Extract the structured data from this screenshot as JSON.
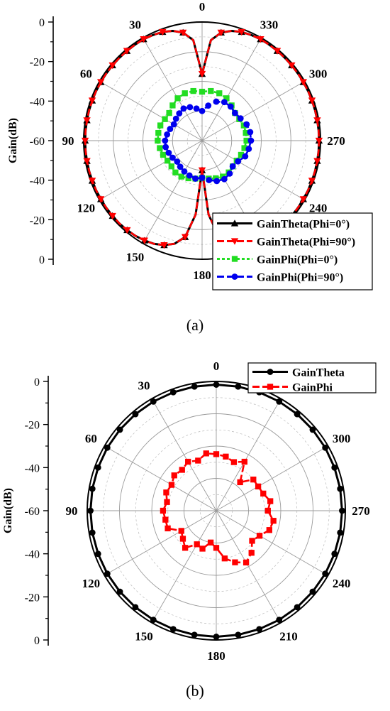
{
  "panel_labels": [
    "(a)",
    "(b)"
  ],
  "chart_data": [
    {
      "type": "polar-line",
      "panel": "(a)",
      "radial_label": "Gain(dB)",
      "rlim": [
        -80,
        0
      ],
      "radial_ticks": [
        0,
        -20,
        -40,
        -60,
        -40,
        -20,
        0
      ],
      "angle_labels": [
        "0",
        "30",
        "60",
        "90",
        "120",
        "150",
        "180",
        "210",
        "240",
        "270",
        "300",
        "330"
      ],
      "angle_direction": "counterclockwise",
      "grid": true,
      "legend_position": "bottom-right",
      "series": [
        {
          "name": "GainTheta(Phi=0°)",
          "color": "#000000",
          "marker": "triangle-up",
          "line": "solid",
          "theta": [
            0,
            5,
            10,
            15,
            20,
            25,
            30,
            35,
            40,
            45,
            50,
            55,
            60,
            65,
            70,
            75,
            80,
            85,
            90,
            95,
            100,
            105,
            110,
            115,
            120,
            125,
            130,
            135,
            140,
            145,
            150,
            155,
            160,
            165,
            170,
            175,
            180,
            185,
            190,
            195,
            200,
            205,
            210,
            215,
            220,
            225,
            230,
            235,
            240,
            245,
            250,
            255,
            260,
            265,
            270,
            275,
            280,
            285,
            290,
            295,
            300,
            305,
            310,
            315,
            320,
            325,
            330,
            335,
            340,
            345,
            350,
            355
          ],
          "values": [
            -35,
            -12,
            -6,
            -3.4,
            -2,
            -1.4,
            -1,
            -1,
            -1,
            -1,
            -1,
            -1,
            -1,
            -1,
            -1,
            -1,
            -1,
            -1,
            -1,
            -1,
            -1,
            -1,
            -1,
            -1,
            -1,
            -1,
            -1,
            -1,
            -1.2,
            -1.6,
            -2.2,
            -3.2,
            -5,
            -8,
            -14,
            -30,
            -60,
            -30,
            -14,
            -8,
            -5,
            -3.2,
            -2.2,
            -1.6,
            -1.2,
            -1,
            -1,
            -1,
            -1,
            -1,
            -1,
            -1,
            -1,
            -1,
            -1,
            -1,
            -1,
            -1,
            -1,
            -1,
            -1,
            -1,
            -1,
            -1,
            -1,
            -1,
            -1,
            -1.4,
            -2,
            -3.4,
            -6,
            -12
          ]
        },
        {
          "name": "GainTheta(Phi=90°)",
          "color": "#ff0000",
          "marker": "triangle-down",
          "line": "dash",
          "theta": [
            0,
            5,
            10,
            15,
            20,
            25,
            30,
            35,
            40,
            45,
            50,
            55,
            60,
            65,
            70,
            75,
            80,
            85,
            90,
            95,
            100,
            105,
            110,
            115,
            120,
            125,
            130,
            135,
            140,
            145,
            150,
            155,
            160,
            165,
            170,
            175,
            180,
            185,
            190,
            195,
            200,
            205,
            210,
            215,
            220,
            225,
            230,
            235,
            240,
            245,
            250,
            255,
            260,
            265,
            270,
            275,
            280,
            285,
            290,
            295,
            300,
            305,
            310,
            315,
            320,
            325,
            330,
            335,
            340,
            345,
            350,
            355
          ],
          "values": [
            -35,
            -12,
            -6,
            -3.4,
            -2,
            -1.4,
            -1,
            -1,
            -1,
            -1,
            -1,
            -1,
            -1,
            -1,
            -1,
            -1,
            -1,
            -1,
            -1,
            -1,
            -1,
            -1,
            -1,
            -1,
            -1,
            -1,
            -1,
            -1,
            -1.2,
            -1.6,
            -2.2,
            -3.2,
            -5,
            -8,
            -14,
            -30,
            -60,
            -30,
            -14,
            -8,
            -5,
            -3.2,
            -2.2,
            -1.6,
            -1.2,
            -1,
            -1,
            -1,
            -1,
            -1,
            -1,
            -1,
            -1,
            -1,
            -1,
            -1,
            -1,
            -1,
            -1,
            -1,
            -1,
            -1,
            -1,
            -1,
            -1,
            -1,
            -1,
            -1.4,
            -2,
            -3.4,
            -6,
            -12
          ]
        },
        {
          "name": "GainPhi(Phi=0°)",
          "color": "#22dd22",
          "marker": "square",
          "line": "dot",
          "theta": [
            0,
            10,
            20,
            30,
            40,
            50,
            60,
            70,
            80,
            90,
            100,
            110,
            120,
            130,
            140,
            150,
            160,
            170,
            180,
            190,
            200,
            210,
            220,
            230,
            240,
            250,
            260,
            270,
            280,
            290,
            300,
            310,
            320,
            330,
            340,
            350
          ],
          "values": [
            -47,
            -46,
            -46,
            -47,
            -49,
            -51,
            -51,
            -50,
            -50,
            -50,
            -51,
            -52,
            -53,
            -53,
            -52,
            -52,
            -53,
            -54,
            -55,
            -54,
            -53,
            -52,
            -52,
            -53,
            -53,
            -52,
            -51,
            -50,
            -50,
            -50,
            -51,
            -51,
            -49,
            -47,
            -46,
            -46
          ]
        },
        {
          "name": "GainPhi(Phi=90°)",
          "color": "#0000ee",
          "marker": "circle",
          "line": "dash",
          "theta": [
            0,
            10,
            20,
            30,
            40,
            50,
            60,
            70,
            80,
            90,
            100,
            110,
            120,
            130,
            140,
            150,
            160,
            170,
            180,
            190,
            200,
            210,
            220,
            230,
            240,
            250,
            260,
            270,
            280,
            290,
            300,
            310,
            320,
            330,
            340,
            350
          ],
          "values": [
            -60,
            -58,
            -56,
            -55,
            -56,
            -57,
            -58,
            -57,
            -56,
            -55,
            -55,
            -56,
            -57,
            -58,
            -57,
            -56,
            -55,
            -54,
            -55,
            -53,
            -51,
            -50,
            -51,
            -53,
            -52,
            -49,
            -48,
            -47,
            -47,
            -48,
            -50,
            -51,
            -50,
            -50,
            -52,
            -56
          ]
        }
      ]
    },
    {
      "type": "polar-line",
      "panel": "(b)",
      "radial_label": "Gain(dB)",
      "rlim": [
        -80,
        0
      ],
      "radial_ticks": [
        0,
        -20,
        -40,
        -60,
        -40,
        -20,
        0
      ],
      "angle_labels": [
        "0",
        "30",
        "60",
        "90",
        "120",
        "150",
        "180",
        "210",
        "240",
        "270",
        "300",
        "330"
      ],
      "angle_direction": "counterclockwise",
      "grid": true,
      "legend_position": "top-right",
      "series": [
        {
          "name": "GainTheta",
          "color": "#000000",
          "marker": "circle",
          "line": "solid",
          "theta": [
            0,
            10,
            20,
            30,
            40,
            50,
            60,
            70,
            80,
            90,
            100,
            110,
            120,
            130,
            140,
            150,
            160,
            170,
            180,
            190,
            200,
            210,
            220,
            230,
            240,
            250,
            260,
            270,
            280,
            290,
            300,
            310,
            320,
            330,
            340,
            350
          ],
          "values": [
            -2,
            -2,
            -2,
            -2,
            -2,
            -2,
            -2,
            -2,
            -2,
            -2,
            -2,
            -2,
            -2,
            -2,
            -2,
            -2,
            -2,
            -2,
            -2,
            -2,
            -2,
            -2,
            -2,
            -2,
            -2,
            -2,
            -2,
            -2,
            -2,
            -2,
            -2,
            -2,
            -2,
            -2,
            -2,
            -2
          ]
        },
        {
          "name": "GainPhi",
          "color": "#ff0000",
          "marker": "square",
          "line": "dash",
          "theta": [
            0,
            10,
            20,
            30,
            40,
            50,
            60,
            70,
            80,
            90,
            100,
            110,
            120,
            130,
            140,
            150,
            160,
            170,
            180,
            190,
            200,
            210,
            220,
            230,
            240,
            250,
            260,
            270,
            280,
            290,
            300,
            310,
            320,
            330,
            340,
            350
          ],
          "values": [
            -45,
            -44,
            -47,
            -45,
            -47,
            -46,
            -48,
            -47,
            -49,
            -47,
            -48,
            -48,
            -55,
            -53,
            -50,
            -56,
            -55,
            -60,
            -57,
            -50,
            -46,
            -43,
            -46,
            -51,
            -49,
            -45,
            -44,
            -48,
            -46,
            -49,
            -50,
            -50,
            -57,
            -45,
            -48,
            -46
          ]
        }
      ]
    }
  ]
}
